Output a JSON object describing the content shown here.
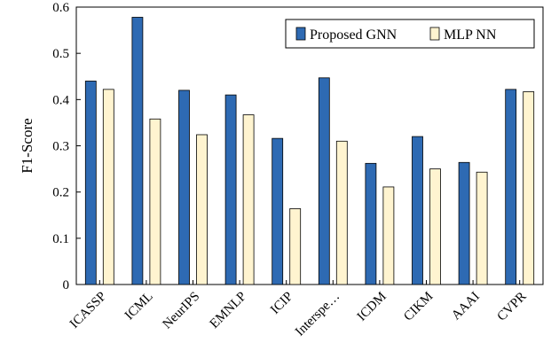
{
  "chart_data": {
    "type": "bar",
    "categories": [
      "ICASSP",
      "ICML",
      "NeurIPS",
      "EMNLP",
      "ICIP",
      "Interspe…",
      "ICDM",
      "CIKM",
      "AAAI",
      "CVPR"
    ],
    "series": [
      {
        "name": "Proposed GNN",
        "color": "#2E6AB3",
        "values": [
          0.44,
          0.578,
          0.42,
          0.41,
          0.316,
          0.447,
          0.262,
          0.32,
          0.264,
          0.422
        ]
      },
      {
        "name": "MLP NN",
        "color": "#FFF4D0",
        "values": [
          0.422,
          0.358,
          0.324,
          0.367,
          0.164,
          0.31,
          0.211,
          0.25,
          0.243,
          0.417
        ]
      }
    ],
    "ylabel": "F1-Score",
    "xlabel": "",
    "ylim": [
      0,
      0.6
    ],
    "yticks": [
      "0",
      "0.1",
      "0.2",
      "0.3",
      "0.4",
      "0.5",
      "0.6"
    ],
    "grid": false,
    "legend_position": "top-right"
  }
}
